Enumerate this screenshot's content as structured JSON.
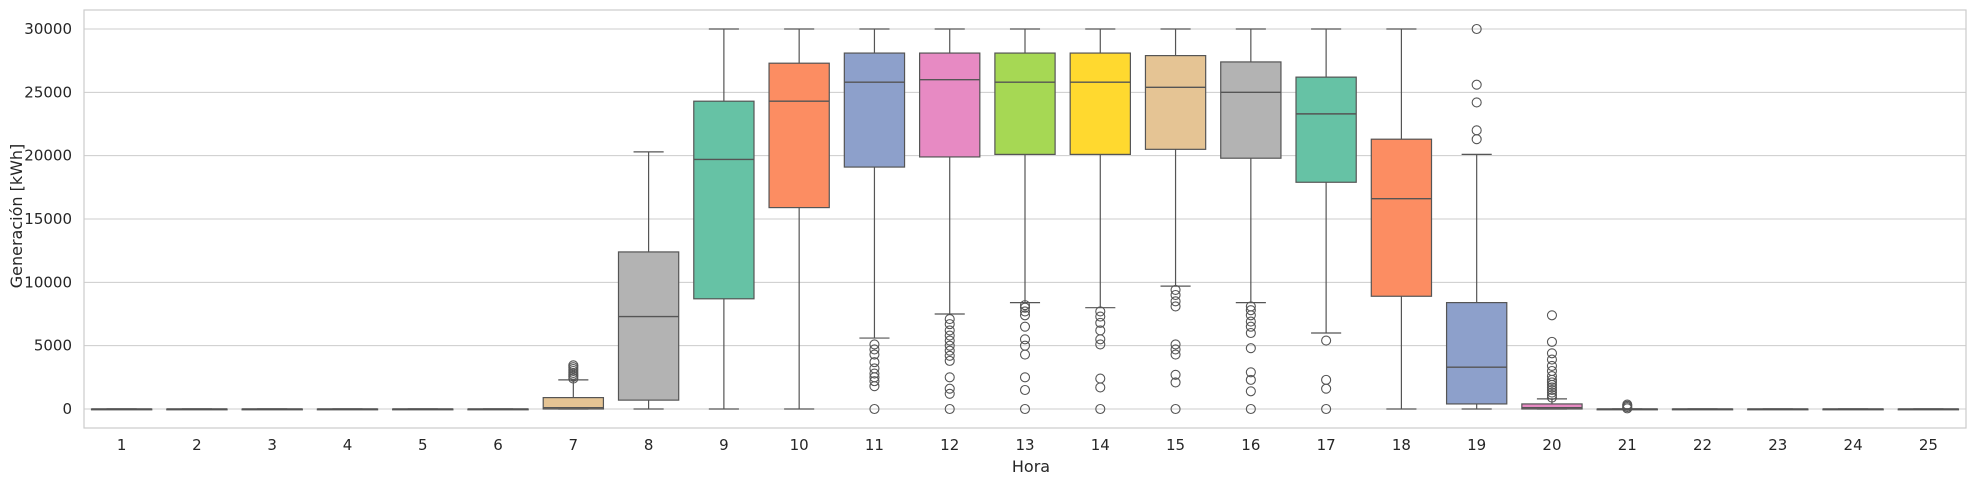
{
  "chart_data": {
    "type": "box",
    "xlabel": "Hora",
    "ylabel": "Generación [kWh]",
    "ylim": [
      -1500,
      31500
    ],
    "yticks": [
      0,
      5000,
      10000,
      15000,
      20000,
      25000,
      30000
    ],
    "yticklabels": [
      "0",
      "5000",
      "10000",
      "15000",
      "20000",
      "25000",
      "30000"
    ],
    "grid": "horizontal",
    "categories": [
      "1",
      "2",
      "3",
      "4",
      "5",
      "6",
      "7",
      "8",
      "9",
      "10",
      "11",
      "12",
      "13",
      "14",
      "15",
      "16",
      "17",
      "18",
      "19",
      "20",
      "21",
      "22",
      "23",
      "24",
      "25"
    ],
    "colors": [
      "#66c2a5",
      "#fc8d62",
      "#8da0cb",
      "#e78ac3",
      "#a6d854",
      "#ffd92f",
      "#e5c494",
      "#b3b3b3",
      "#66c2a5",
      "#fc8d62",
      "#8da0cb",
      "#e78ac3",
      "#a6d854",
      "#ffd92f",
      "#e5c494",
      "#b3b3b3",
      "#66c2a5",
      "#fc8d62",
      "#8da0cb",
      "#e78ac3",
      "#a6d854",
      "#ffd92f",
      "#e5c494",
      "#b3b3b3",
      "#66c2a5"
    ],
    "boxes": [
      {
        "hour": "1",
        "whislo": 0,
        "q1": 0,
        "med": 0,
        "q3": 0,
        "whishi": 0,
        "fliers": []
      },
      {
        "hour": "2",
        "whislo": 0,
        "q1": 0,
        "med": 0,
        "q3": 0,
        "whishi": 0,
        "fliers": []
      },
      {
        "hour": "3",
        "whislo": 0,
        "q1": 0,
        "med": 0,
        "q3": 0,
        "whishi": 0,
        "fliers": []
      },
      {
        "hour": "4",
        "whislo": 0,
        "q1": 0,
        "med": 0,
        "q3": 0,
        "whishi": 0,
        "fliers": []
      },
      {
        "hour": "5",
        "whislo": 0,
        "q1": 0,
        "med": 0,
        "q3": 0,
        "whishi": 0,
        "fliers": []
      },
      {
        "hour": "6",
        "whislo": 0,
        "q1": 0,
        "med": 0,
        "q3": 0,
        "whishi": 0,
        "fliers": []
      },
      {
        "hour": "7",
        "whislo": 0,
        "q1": 0,
        "med": 100,
        "q3": 900,
        "whishi": 2300,
        "fliers": [
          2400,
          2550,
          2700,
          2850,
          3000,
          3150,
          3300,
          3450
        ]
      },
      {
        "hour": "8",
        "whislo": 0,
        "q1": 700,
        "med": 7300,
        "q3": 12400,
        "whishi": 20300,
        "fliers": []
      },
      {
        "hour": "9",
        "whislo": 0,
        "q1": 8700,
        "med": 19700,
        "q3": 24300,
        "whishi": 30000,
        "fliers": []
      },
      {
        "hour": "10",
        "whislo": 0,
        "q1": 15900,
        "med": 24300,
        "q3": 27300,
        "whishi": 30000,
        "fliers": []
      },
      {
        "hour": "11",
        "whislo": 5600,
        "q1": 19100,
        "med": 25800,
        "q3": 28100,
        "whishi": 30000,
        "fliers": [
          0,
          1800,
          2200,
          2500,
          2800,
          3200,
          3700,
          4300,
          4700,
          5100
        ]
      },
      {
        "hour": "12",
        "whislo": 7500,
        "q1": 19900,
        "med": 26000,
        "q3": 28100,
        "whishi": 30000,
        "fliers": [
          0,
          1200,
          1600,
          2500,
          3800,
          4200,
          4600,
          5000,
          5400,
          5800,
          6200,
          6700,
          7100
        ]
      },
      {
        "hour": "13",
        "whislo": 8400,
        "q1": 20100,
        "med": 25800,
        "q3": 28100,
        "whishi": 30000,
        "fliers": [
          0,
          1500,
          2500,
          4300,
          5000,
          5500,
          6500,
          7400,
          7700,
          8000,
          8200
        ]
      },
      {
        "hour": "14",
        "whislo": 8000,
        "q1": 20100,
        "med": 25800,
        "q3": 28100,
        "whishi": 30000,
        "fliers": [
          0,
          1700,
          2400,
          5100,
          5500,
          6200,
          6800,
          7300,
          7700
        ]
      },
      {
        "hour": "15",
        "whislo": 9700,
        "q1": 20500,
        "med": 25400,
        "q3": 27900,
        "whishi": 30000,
        "fliers": [
          0,
          2100,
          2700,
          4300,
          4700,
          5100,
          8100,
          8500,
          9000,
          9400
        ]
      },
      {
        "hour": "16",
        "whislo": 8400,
        "q1": 19800,
        "med": 25000,
        "q3": 27400,
        "whishi": 30000,
        "fliers": [
          0,
          1400,
          2300,
          2900,
          4800,
          6000,
          6500,
          6900,
          7400,
          7800,
          8100
        ]
      },
      {
        "hour": "17",
        "whislo": 6000,
        "q1": 17900,
        "med": 23300,
        "q3": 26200,
        "whishi": 30000,
        "fliers": [
          0,
          1600,
          2300,
          5400
        ]
      },
      {
        "hour": "18",
        "whislo": 0,
        "q1": 8900,
        "med": 16600,
        "q3": 21300,
        "whishi": 30000,
        "fliers": []
      },
      {
        "hour": "19",
        "whislo": 0,
        "q1": 400,
        "med": 3300,
        "q3": 8400,
        "whishi": 20100,
        "fliers": [
          21300,
          22000,
          24200,
          25600,
          30000
        ]
      },
      {
        "hour": "20",
        "whislo": 0,
        "q1": 0,
        "med": 100,
        "q3": 400,
        "whishi": 800,
        "fliers": [
          900,
          1100,
          1300,
          1500,
          1700,
          1900,
          2100,
          2300,
          2600,
          3000,
          3400,
          3900,
          4400,
          5300,
          7400
        ]
      },
      {
        "hour": "21",
        "whislo": 0,
        "q1": 0,
        "med": 0,
        "q3": 0,
        "whishi": 0,
        "fliers": [
          50,
          150,
          250,
          350
        ]
      },
      {
        "hour": "22",
        "whislo": 0,
        "q1": 0,
        "med": 0,
        "q3": 0,
        "whishi": 0,
        "fliers": []
      },
      {
        "hour": "23",
        "whislo": 0,
        "q1": 0,
        "med": 0,
        "q3": 0,
        "whishi": 0,
        "fliers": []
      },
      {
        "hour": "24",
        "whislo": 0,
        "q1": 0,
        "med": 0,
        "q3": 0,
        "whishi": 0,
        "fliers": []
      },
      {
        "hour": "25",
        "whislo": 0,
        "q1": 0,
        "med": 0,
        "q3": 0,
        "whishi": 0,
        "fliers": []
      }
    ]
  }
}
